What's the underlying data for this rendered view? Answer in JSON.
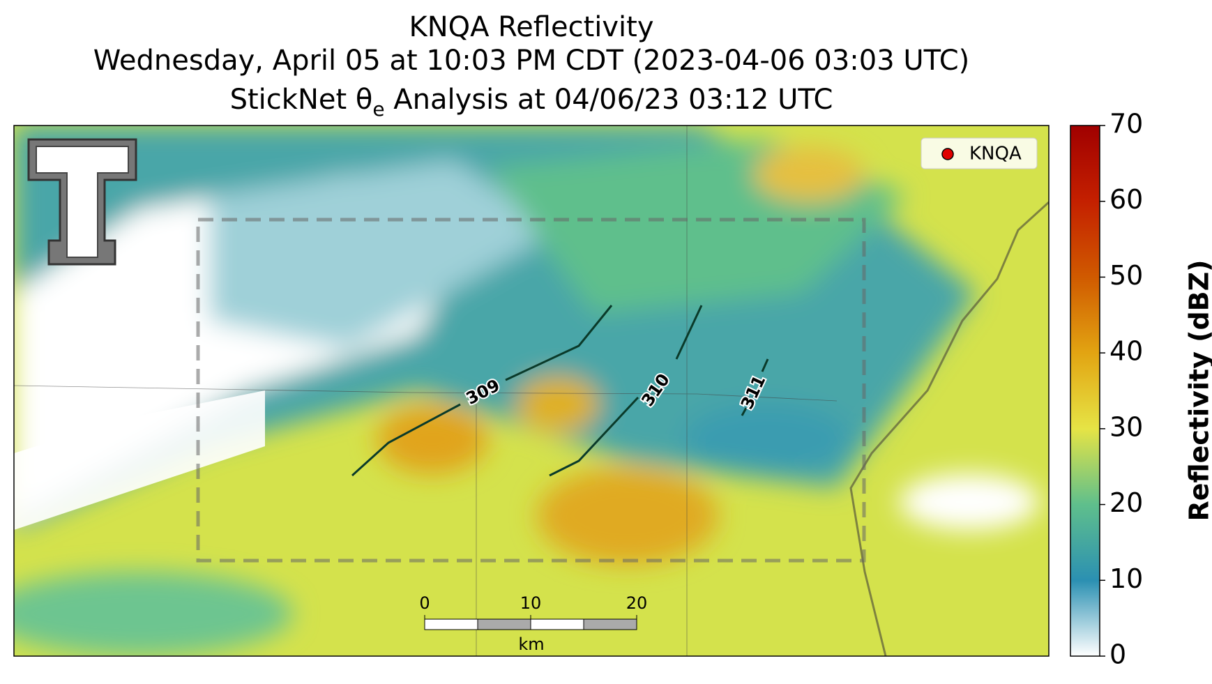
{
  "title": {
    "line1": "KNQA Reflectivity",
    "line2": "Wednesday, April 05 at 10:03 PM CDT (2023-04-06 03:03 UTC)",
    "line3": [
      "StickNet θ",
      "e",
      " Analysis at 04/06/23 03:12 UTC"
    ]
  },
  "legend": {
    "label": "KNQA",
    "color": "#e00000"
  },
  "contours": [
    {
      "label": 309
    },
    {
      "label": 310
    },
    {
      "label": 311
    }
  ],
  "scalebar": {
    "ticks": [
      0,
      10,
      20
    ],
    "unit": "km"
  },
  "colorbar": {
    "label": "Reflectivity (dBZ)",
    "lim": [
      0,
      70
    ],
    "ticks": [
      0,
      10,
      20,
      30,
      40,
      50,
      60,
      70
    ],
    "colors": [
      "#ffffff",
      "#2b90b2",
      "#5fbf8c",
      "#e6e445",
      "#e2a412",
      "#d05a00",
      "#c42000",
      "#a00000"
    ]
  }
}
